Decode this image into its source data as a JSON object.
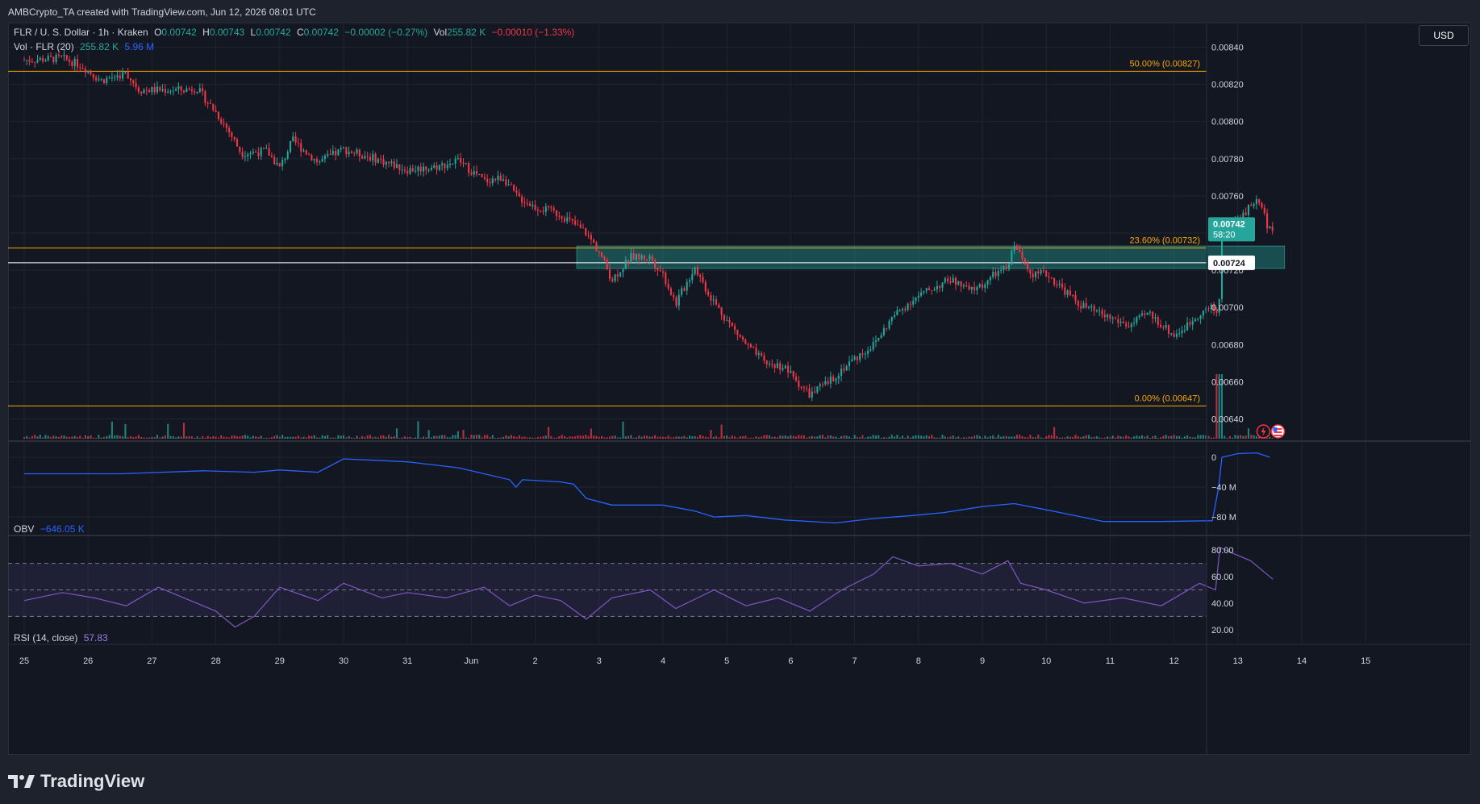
{
  "header": {
    "attribution": "AMBCrypto_TA created with TradingView.com, Jun 12, 2026 08:01 UTC"
  },
  "legend": {
    "symbol": "FLR / U. S. Dollar · 1h · Kraken",
    "o_label": "O",
    "o_value": "0.00742",
    "h_label": "H",
    "h_value": "0.00743",
    "l_label": "L",
    "l_value": "0.00742",
    "c_label": "C",
    "c_value": "0.00742",
    "change": "−0.00002 (−0.27%)",
    "vol_label": "Vol",
    "vol_value": "255.82 K",
    "vol_change": "−0.00010 (−1.33%)",
    "vol_indicator": "Vol · FLR (20)",
    "vol_ind_value1": "255.82 K",
    "vol_ind_value2": "5.96 M",
    "obv_label": "OBV",
    "obv_value": "−646.05 K",
    "rsi_label": "RSI (14, close)",
    "rsi_value": "57.83"
  },
  "currency_button": "USD",
  "brand": "TradingView",
  "colors": {
    "background": "#131722",
    "up": "#26a69a",
    "down": "#f23645",
    "fib": "#f7a600",
    "zone": "#26a69a",
    "obv": "#2962ff",
    "rsi": "#7e57c2"
  },
  "chart_data": [
    {
      "type": "candlestick",
      "title": "FLR / U. S. Dollar · 1h · Kraken",
      "x_ticks": [
        "25",
        "26",
        "27",
        "28",
        "29",
        "30",
        "31",
        "Jun",
        "2",
        "3",
        "4",
        "5",
        "6",
        "7",
        "8",
        "9",
        "10",
        "11",
        "12",
        "13",
        "14",
        "15"
      ],
      "ylim": [
        0.00632,
        0.00848
      ],
      "y_ticks": [
        "0.00640",
        "0.00660",
        "0.00680",
        "0.00700",
        "0.00720",
        "0.00740",
        "0.00760",
        "0.00780",
        "0.00800",
        "0.00820",
        "0.00840"
      ],
      "price_path": [
        [
          0,
          0.00833
        ],
        [
          0.6,
          0.00834
        ],
        [
          0.9,
          0.0083
        ],
        [
          1.2,
          0.00822
        ],
        [
          1.6,
          0.00826
        ],
        [
          1.8,
          0.00817
        ],
        [
          2.5,
          0.00817
        ],
        [
          2.7,
          0.00818
        ],
        [
          3.0,
          0.00805
        ],
        [
          3.2,
          0.00795
        ],
        [
          3.4,
          0.00783
        ],
        [
          3.8,
          0.00784
        ],
        [
          4.0,
          0.00775
        ],
        [
          4.2,
          0.0079
        ],
        [
          4.6,
          0.00778
        ],
        [
          5.0,
          0.00785
        ],
        [
          5.5,
          0.0078
        ],
        [
          6.0,
          0.00774
        ],
        [
          6.5,
          0.00776
        ],
        [
          6.8,
          0.00779
        ],
        [
          7.2,
          0.00768
        ],
        [
          7.5,
          0.0077
        ],
        [
          7.7,
          0.0076
        ],
        [
          8.0,
          0.00754
        ],
        [
          8.4,
          0.0075
        ],
        [
          8.6,
          0.00745
        ],
        [
          8.8,
          0.0074
        ],
        [
          9.0,
          0.0073
        ],
        [
          9.2,
          0.00715
        ],
        [
          9.5,
          0.00727
        ],
        [
          9.8,
          0.00727
        ],
        [
          10.0,
          0.00718
        ],
        [
          10.2,
          0.00702
        ],
        [
          10.5,
          0.00722
        ],
        [
          10.7,
          0.00708
        ],
        [
          11.0,
          0.00693
        ],
        [
          11.3,
          0.0068
        ],
        [
          11.6,
          0.0067
        ],
        [
          11.9,
          0.00668
        ],
        [
          12.1,
          0.0066
        ],
        [
          12.3,
          0.00653
        ],
        [
          12.6,
          0.0066
        ],
        [
          12.9,
          0.0067
        ],
        [
          13.3,
          0.0068
        ],
        [
          13.6,
          0.00695
        ],
        [
          13.9,
          0.00704
        ],
        [
          14.2,
          0.0071
        ],
        [
          14.5,
          0.00715
        ],
        [
          14.8,
          0.00709
        ],
        [
          15.0,
          0.00712
        ],
        [
          15.2,
          0.00718
        ],
        [
          15.4,
          0.00721
        ],
        [
          15.5,
          0.00735
        ],
        [
          15.6,
          0.00727
        ],
        [
          15.8,
          0.00718
        ],
        [
          16.0,
          0.00718
        ],
        [
          16.2,
          0.00712
        ],
        [
          16.5,
          0.00702
        ],
        [
          16.8,
          0.00697
        ],
        [
          17.1,
          0.00693
        ],
        [
          17.3,
          0.0069
        ],
        [
          17.6,
          0.00697
        ],
        [
          17.9,
          0.00688
        ],
        [
          18.0,
          0.00685
        ],
        [
          18.2,
          0.0069
        ],
        [
          18.4,
          0.00697
        ],
        [
          18.6,
          0.007
        ],
        [
          18.7,
          0.00695
        ],
        [
          18.72,
          0.0072
        ],
        [
          18.75,
          0.0074
        ],
        [
          18.9,
          0.00745
        ],
        [
          19.1,
          0.0075
        ],
        [
          19.2,
          0.00755
        ],
        [
          19.35,
          0.00758
        ],
        [
          19.45,
          0.00745
        ],
        [
          19.55,
          0.00742
        ]
      ],
      "last_price": "0.00742",
      "countdown": "58:20",
      "level_label_price": "0.00724",
      "fib_levels": [
        {
          "label": "50.00% (0.00827)",
          "value": 0.00827
        },
        {
          "label": "23.60% (0.00732)",
          "value": 0.00732
        },
        {
          "label": "0.00% (0.00647)",
          "value": 0.00647
        }
      ],
      "horizontal_line": 0.00724,
      "zone": {
        "from_x": 8.65,
        "to_x": 19.73,
        "low": 0.00721,
        "high": 0.00733
      }
    },
    {
      "type": "line",
      "title": "OBV",
      "y_ticks": [
        "0",
        "−40 M",
        "−80 M"
      ],
      "ylim": [
        -95,
        12
      ],
      "series": [
        {
          "values": [
            [
              0,
              -22
            ],
            [
              1.5,
              -22
            ],
            [
              2.8,
              -18
            ],
            [
              3.6,
              -20
            ],
            [
              4.0,
              -17
            ],
            [
              4.6,
              -20
            ],
            [
              5.0,
              -2
            ],
            [
              5.5,
              -4
            ],
            [
              6.0,
              -6
            ],
            [
              6.8,
              -14
            ],
            [
              7.2,
              -22
            ],
            [
              7.6,
              -30
            ],
            [
              7.7,
              -40
            ],
            [
              7.8,
              -30
            ],
            [
              8.4,
              -33
            ],
            [
              8.6,
              -36
            ],
            [
              8.8,
              -55
            ],
            [
              9.2,
              -64
            ],
            [
              10.0,
              -64
            ],
            [
              10.5,
              -72
            ],
            [
              10.8,
              -80
            ],
            [
              11.3,
              -78
            ],
            [
              11.9,
              -84
            ],
            [
              12.7,
              -88
            ],
            [
              13.3,
              -82
            ],
            [
              13.9,
              -78
            ],
            [
              14.4,
              -74
            ],
            [
              15.0,
              -66
            ],
            [
              15.5,
              -62
            ],
            [
              16.1,
              -72
            ],
            [
              16.9,
              -86
            ],
            [
              17.8,
              -86
            ],
            [
              18.6,
              -85
            ],
            [
              18.7,
              -40
            ],
            [
              18.75,
              0
            ],
            [
              19.0,
              5
            ],
            [
              19.3,
              6
            ],
            [
              19.5,
              0
            ]
          ]
        }
      ]
    },
    {
      "type": "line",
      "title": "RSI (14, close)",
      "y_ticks": [
        "80.00",
        "60.00",
        "40.00",
        "20.00"
      ],
      "ylim": [
        12,
        88
      ],
      "band": [
        30,
        70
      ],
      "series": [
        {
          "values": [
            [
              0,
              42
            ],
            [
              0.6,
              48
            ],
            [
              1.1,
              44
            ],
            [
              1.6,
              38
            ],
            [
              2.1,
              52
            ],
            [
              2.5,
              44
            ],
            [
              3.0,
              34
            ],
            [
              3.3,
              22
            ],
            [
              3.6,
              30
            ],
            [
              4.0,
              52
            ],
            [
              4.6,
              42
            ],
            [
              5.0,
              55
            ],
            [
              5.6,
              44
            ],
            [
              6.0,
              48
            ],
            [
              6.6,
              44
            ],
            [
              7.2,
              52
            ],
            [
              7.6,
              38
            ],
            [
              8.0,
              46
            ],
            [
              8.4,
              42
            ],
            [
              8.8,
              28
            ],
            [
              9.2,
              44
            ],
            [
              9.8,
              50
            ],
            [
              10.2,
              36
            ],
            [
              10.8,
              50
            ],
            [
              11.3,
              38
            ],
            [
              11.8,
              44
            ],
            [
              12.3,
              34
            ],
            [
              12.8,
              50
            ],
            [
              13.3,
              62
            ],
            [
              13.6,
              75
            ],
            [
              14.0,
              68
            ],
            [
              14.5,
              70
            ],
            [
              15.0,
              62
            ],
            [
              15.4,
              72
            ],
            [
              15.6,
              55
            ],
            [
              16.0,
              50
            ],
            [
              16.6,
              40
            ],
            [
              17.2,
              44
            ],
            [
              17.8,
              38
            ],
            [
              18.4,
              55
            ],
            [
              18.65,
              50
            ],
            [
              18.72,
              82
            ],
            [
              18.9,
              78
            ],
            [
              19.2,
              72
            ],
            [
              19.45,
              62
            ],
            [
              19.55,
              58
            ]
          ]
        }
      ]
    }
  ]
}
